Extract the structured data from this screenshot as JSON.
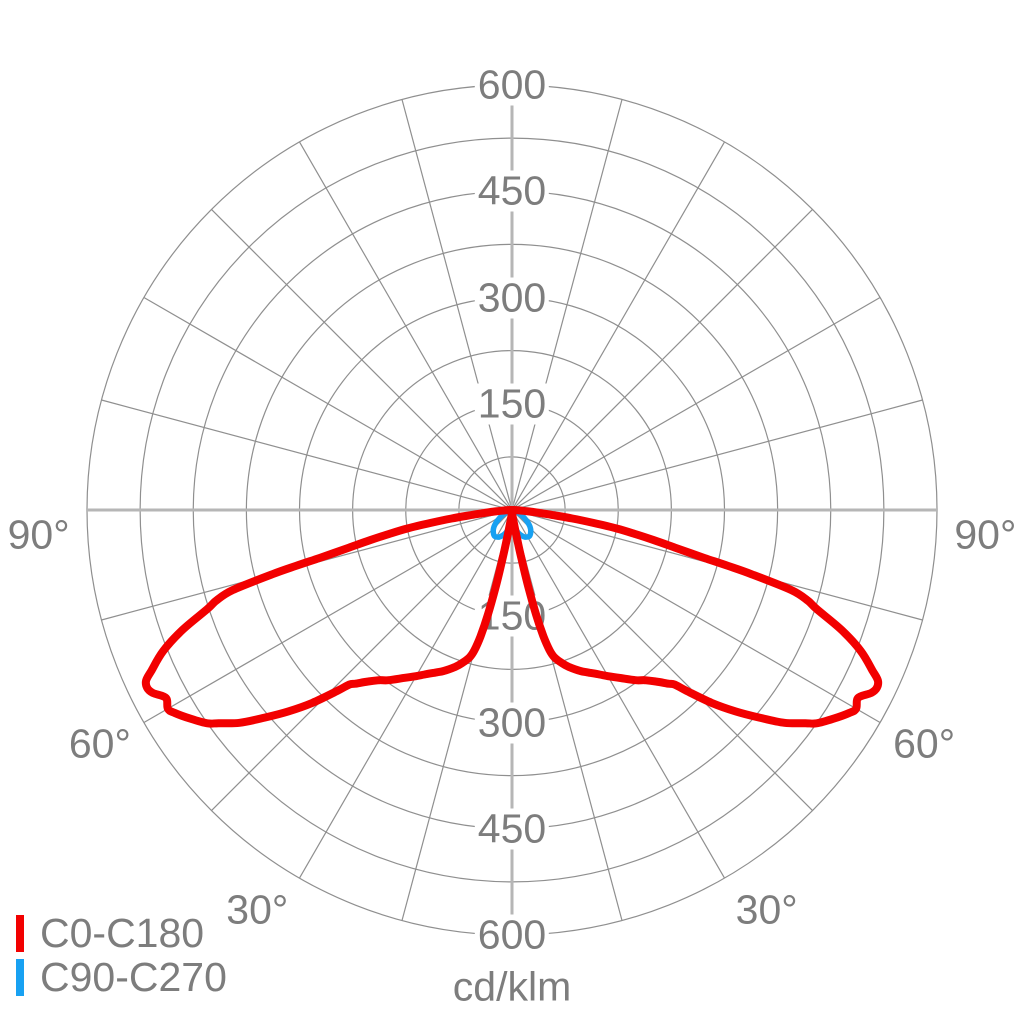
{
  "legend": {
    "items": [
      {
        "label": "C0-C180",
        "color": "#f20000"
      },
      {
        "label": "C90-C270",
        "color": "#18a1f2"
      }
    ]
  },
  "axis": {
    "unit_label": "cd/klm",
    "radial_ticks": [
      150,
      300,
      450,
      600
    ],
    "radial_max": 600,
    "ring_step": 75,
    "angle_labels": [
      "30°",
      "60°",
      "90°"
    ],
    "grid_color": "#8f8f8f",
    "axis_color": "#b6b6b6",
    "text_color": "#7d7d7d"
  },
  "chart_data": {
    "type": "polar_photometric",
    "unit": "cd/klm",
    "angle_convention": "0 deg at nadir (bottom of plot), angles increase symmetrically to 90 deg at horizontal; curves mirrored left/right",
    "rings": [
      75,
      150,
      225,
      300,
      375,
      450,
      525,
      600
    ],
    "radial_max": 600,
    "angle_grid_step_deg": 15,
    "series": [
      {
        "name": "C0-C180",
        "color": "#f20000",
        "stroke_width": 8,
        "symmetric": true,
        "points": [
          [
            0,
            4
          ],
          [
            5,
            9
          ],
          [
            8,
            18
          ],
          [
            10,
            40
          ],
          [
            11,
            70
          ],
          [
            12,
            112
          ],
          [
            13,
            152
          ],
          [
            14,
            184
          ],
          [
            15,
            205
          ],
          [
            16,
            216
          ],
          [
            18,
            227
          ],
          [
            20,
            236
          ],
          [
            23,
            247
          ],
          [
            25,
            253
          ],
          [
            28,
            263
          ],
          [
            30,
            271
          ],
          [
            33,
            283
          ],
          [
            36,
            297
          ],
          [
            38,
            305
          ],
          [
            40,
            316
          ],
          [
            42,
            330
          ],
          [
            43,
            337
          ],
          [
            44,
            355
          ],
          [
            46,
            392
          ],
          [
            48,
            425
          ],
          [
            50,
            456
          ],
          [
            52,
            488
          ],
          [
            54,
            512
          ],
          [
            55,
            525
          ],
          [
            57,
            541
          ],
          [
            59,
            556
          ],
          [
            60,
            561
          ],
          [
            61.5,
            556
          ],
          [
            63,
            569
          ],
          [
            64,
            573
          ],
          [
            65,
            570
          ],
          [
            66,
            557
          ],
          [
            68,
            531
          ],
          [
            70,
            495
          ],
          [
            72,
            452
          ],
          [
            73,
            436
          ],
          [
            74,
            410
          ],
          [
            75,
            350
          ],
          [
            75.5,
            315
          ],
          [
            76,
            280
          ],
          [
            77,
            236
          ],
          [
            78,
            205
          ],
          [
            79,
            176
          ],
          [
            80,
            150
          ],
          [
            81,
            116
          ],
          [
            82,
            86
          ],
          [
            83,
            56
          ],
          [
            84,
            38
          ],
          [
            85,
            26
          ],
          [
            86,
            16
          ],
          [
            88,
            6
          ],
          [
            90,
            2
          ]
        ]
      },
      {
        "name": "C90-C270",
        "color": "#18a1f2",
        "stroke_width": 5.5,
        "symmetric": true,
        "points": [
          [
            0,
            14
          ],
          [
            5,
            18
          ],
          [
            10,
            26
          ],
          [
            15,
            33
          ],
          [
            20,
            38
          ],
          [
            25,
            42
          ],
          [
            30,
            44
          ],
          [
            35,
            44
          ],
          [
            40,
            41
          ],
          [
            45,
            37
          ],
          [
            50,
            31
          ],
          [
            55,
            24
          ],
          [
            60,
            17
          ],
          [
            65,
            11
          ],
          [
            70,
            7
          ],
          [
            75,
            4
          ],
          [
            80,
            2
          ],
          [
            85,
            1
          ],
          [
            90,
            0.5
          ]
        ]
      }
    ]
  }
}
